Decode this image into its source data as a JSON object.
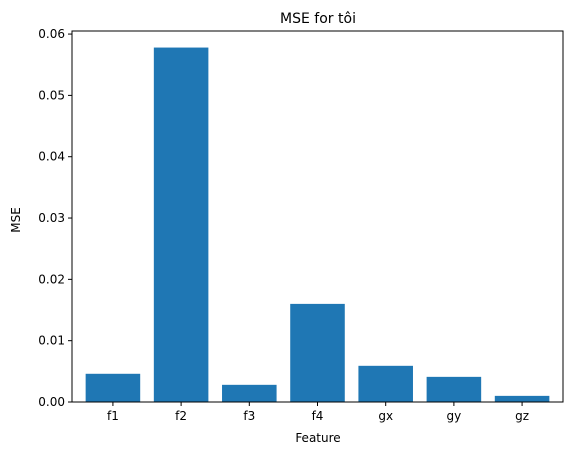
{
  "chart_data": {
    "type": "bar",
    "title": "MSE for tôi",
    "xlabel": "Feature",
    "ylabel": "MSE",
    "categories": [
      "f1",
      "f2",
      "f3",
      "f4",
      "gx",
      "gy",
      "gz"
    ],
    "values": [
      0.0046,
      0.0578,
      0.0028,
      0.016,
      0.0059,
      0.0041,
      0.001
    ],
    "ylim": [
      0,
      0.0605
    ],
    "yticks": [
      "0.00",
      "0.01",
      "0.02",
      "0.03",
      "0.04",
      "0.05",
      "0.06"
    ],
    "grid": false,
    "legend": "none",
    "bar_color": "#1f77b4"
  }
}
